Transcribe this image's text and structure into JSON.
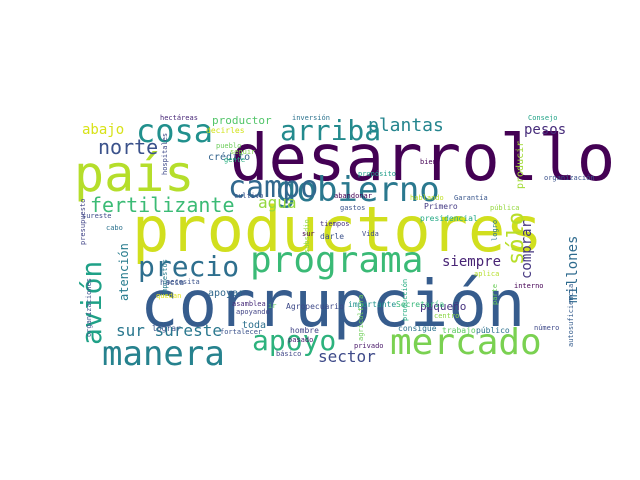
{
  "palette": {
    "dark_purple": "#440154",
    "indigo": "#3b528b",
    "teal": "#21918c",
    "green": "#5ec962",
    "yellow": "#c8d61e",
    "blue": "#2c6e8e"
  },
  "words": [
    {
      "text": "corrupción",
      "color": "#365c8d"
    },
    {
      "text": "desarrollo",
      "color": "#440154"
    },
    {
      "text": "productores",
      "color": "#d1df1e"
    },
    {
      "text": "país",
      "color": "#b5de2b"
    },
    {
      "text": "gobierno",
      "color": "#2a788e"
    },
    {
      "text": "programa",
      "color": "#3aba76"
    },
    {
      "text": "campo",
      "color": "#31688e"
    },
    {
      "text": "mercado",
      "color": "#7ad151"
    },
    {
      "text": "manera",
      "color": "#26828e"
    },
    {
      "text": "avión",
      "color": "#1fa187"
    },
    {
      "text": "cosa",
      "color": "#21908d"
    },
    {
      "text": "arriba",
      "color": "#238a8d"
    },
    {
      "text": "precio",
      "color": "#2e6f8e"
    },
    {
      "text": "apoyo",
      "color": "#2db27d"
    },
    {
      "text": "plantas",
      "color": "#25858e"
    },
    {
      "text": "fertilizante",
      "color": "#3bbb75"
    },
    {
      "text": "norte",
      "color": "#3b528b"
    },
    {
      "text": "sólo",
      "color": "#b8de29"
    },
    {
      "text": "agua",
      "color": "#94d840"
    },
    {
      "text": "sur sureste",
      "color": "#2a778e"
    },
    {
      "text": "sector",
      "color": "#3e4a89"
    },
    {
      "text": "abajo",
      "color": "#d8e219"
    },
    {
      "text": "siempre",
      "color": "#482475"
    },
    {
      "text": "comprar",
      "color": "#453781"
    },
    {
      "text": "millones",
      "color": "#2f6b8e"
    },
    {
      "text": "pesos",
      "color": "#472d7b"
    },
    {
      "text": "atención",
      "color": "#287c8e"
    },
    {
      "text": "pequeño",
      "color": "#46337f"
    },
    {
      "text": "producir",
      "color": "#a2da37"
    },
    {
      "text": "productor",
      "color": "#52c569"
    },
    {
      "text": "apoyar",
      "color": "#31688e"
    },
    {
      "text": "crédito",
      "color": "#33638d"
    },
    {
      "text": "toda",
      "color": "#2d708e"
    },
    {
      "text": "hombre",
      "color": "#414487"
    },
    {
      "text": "darle",
      "color": "#3b528b"
    },
    {
      "text": "hacia",
      "color": "#39568c"
    },
    {
      "text": "lograr",
      "color": "#3b528b"
    },
    {
      "text": "tiempos",
      "color": "#46307e"
    },
    {
      "text": "Agropecuario",
      "color": "#3e4a89"
    },
    {
      "text": "importante",
      "color": "#20928c"
    },
    {
      "text": "Secretaría",
      "color": "#35b779"
    },
    {
      "text": "público",
      "color": "#2d708e"
    },
    {
      "text": "trabajo",
      "color": "#5ec962"
    },
    {
      "text": "consigue",
      "color": "#2c728e"
    },
    {
      "text": "privado",
      "color": "#481668"
    },
    {
      "text": "básico",
      "color": "#3f4788"
    },
    {
      "text": "necesita",
      "color": "#3b528b"
    },
    {
      "text": "Primero",
      "color": "#443983"
    },
    {
      "text": "presidencial",
      "color": "#22a884"
    },
    {
      "text": "bien",
      "color": "#440154"
    },
    {
      "text": "Vida",
      "color": "#3e4989"
    },
    {
      "text": "pasado",
      "color": "#481a6c"
    },
    {
      "text": "fortalecer",
      "color": "#3b528b"
    },
    {
      "text": "apoyando",
      "color": "#414487"
    },
    {
      "text": "asamblea",
      "color": "#472c7a"
    },
    {
      "text": "gente",
      "color": "#29af7f"
    },
    {
      "text": "seguir",
      "color": "#84d44b"
    },
    {
      "text": "cultivo",
      "color": "#3b528b"
    },
    {
      "text": "abandonar",
      "color": "#440154"
    },
    {
      "text": "gastos",
      "color": "#3a538b"
    },
    {
      "text": "propósito",
      "color": "#1f9e89"
    },
    {
      "text": "pueblo",
      "color": "#6ccd5a"
    },
    {
      "text": "decirles",
      "color": "#d2e21b"
    },
    {
      "text": "hectáreas",
      "color": "#482878"
    },
    {
      "text": "inversión",
      "color": "#2c738e"
    },
    {
      "text": "hablando",
      "color": "#c0df25"
    },
    {
      "text": "Garantía",
      "color": "#39568c"
    },
    {
      "text": "Consejo",
      "color": "#20a386"
    },
    {
      "text": "organización",
      "color": "#3b528b"
    },
    {
      "text": "pública",
      "color": "#95d840"
    },
    {
      "text": "sureste",
      "color": "#3e4a89"
    },
    {
      "text": "presupuesto",
      "color": "#414487"
    },
    {
      "text": "hospitales",
      "color": "#3e4989"
    },
    {
      "text": "cabo",
      "color": "#2c728e"
    },
    {
      "text": "impuestos",
      "color": "#287d8e"
    },
    {
      "text": "subsidio",
      "color": "#90d743"
    },
    {
      "text": "sur",
      "color": "#440154"
    },
    {
      "text": "quedan",
      "color": "#e5e419"
    },
    {
      "text": "organizaciones",
      "color": "#3b528b"
    },
    {
      "text": "agricultura",
      "color": "#6ece58"
    },
    {
      "text": "producción",
      "color": "#26ad81"
    },
    {
      "text": "centro",
      "color": "#8bd646"
    },
    {
      "text": "número",
      "color": "#3e4989"
    },
    {
      "text": "autosuficiencia",
      "color": "#365d8d"
    },
    {
      "text": "parte",
      "color": "#6ccd5a"
    },
    {
      "text": "logro",
      "color": "#2a788e"
    },
    {
      "text": "aplica",
      "color": "#b5de2b"
    },
    {
      "text": "interno",
      "color": "#440154"
    },
    {
      "text": "ir",
      "color": "#5ec962"
    }
  ]
}
